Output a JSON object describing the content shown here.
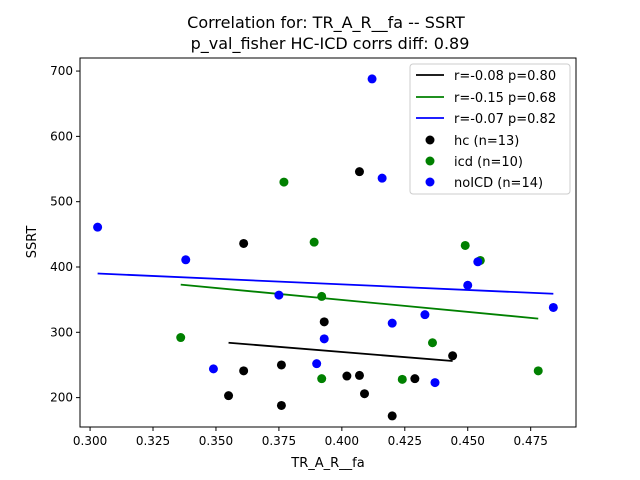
{
  "chart_data": {
    "type": "scatter",
    "title": "Correlation for: TR_A_R__fa -- SSRT",
    "subtitle": "p_val_fisher HC-ICD corrs diff: 0.89",
    "xlabel": "TR_A_R__fa",
    "ylabel": "SSRT",
    "xlim": [
      0.296,
      0.493
    ],
    "ylim": [
      155,
      720
    ],
    "x_ticks": [
      "0.300",
      "0.325",
      "0.350",
      "0.375",
      "0.400",
      "0.425",
      "0.450",
      "0.475"
    ],
    "y_ticks": [
      "200",
      "300",
      "400",
      "500",
      "600",
      "700"
    ],
    "grid": false,
    "legend_position": "top-right",
    "regression_lines": [
      {
        "name": "r=-0.08 p=0.80",
        "color": "#000000",
        "x": [
          0.355,
          0.444
        ],
        "y": [
          284,
          256
        ]
      },
      {
        "name": "r=-0.15 p=0.68",
        "color": "#008000",
        "x": [
          0.336,
          0.478
        ],
        "y": [
          373,
          321
        ]
      },
      {
        "name": "r=-0.07 p=0.82",
        "color": "#0000ff",
        "x": [
          0.303,
          0.484
        ],
        "y": [
          390,
          359
        ]
      }
    ],
    "series": [
      {
        "name": "hc (n=13)",
        "color": "#000000",
        "x": [
          0.355,
          0.361,
          0.361,
          0.376,
          0.376,
          0.393,
          0.402,
          0.407,
          0.407,
          0.409,
          0.42,
          0.429,
          0.444
        ],
        "y": [
          203,
          241,
          436,
          250,
          188,
          316,
          233,
          546,
          234,
          206,
          172,
          229,
          264
        ]
      },
      {
        "name": "icd (n=10)",
        "color": "#008000",
        "x": [
          0.336,
          0.377,
          0.389,
          0.392,
          0.392,
          0.424,
          0.436,
          0.449,
          0.455,
          0.478
        ],
        "y": [
          292,
          530,
          438,
          355,
          229,
          228,
          284,
          433,
          410,
          241
        ]
      },
      {
        "name": "noICD (n=14)",
        "color": "#0000ff",
        "x": [
          0.303,
          0.338,
          0.349,
          0.375,
          0.39,
          0.393,
          0.412,
          0.416,
          0.42,
          0.433,
          0.437,
          0.45,
          0.454,
          0.484
        ],
        "y": [
          461,
          411,
          244,
          357,
          252,
          290,
          688,
          536,
          314,
          327,
          223,
          372,
          408,
          338
        ]
      }
    ]
  }
}
